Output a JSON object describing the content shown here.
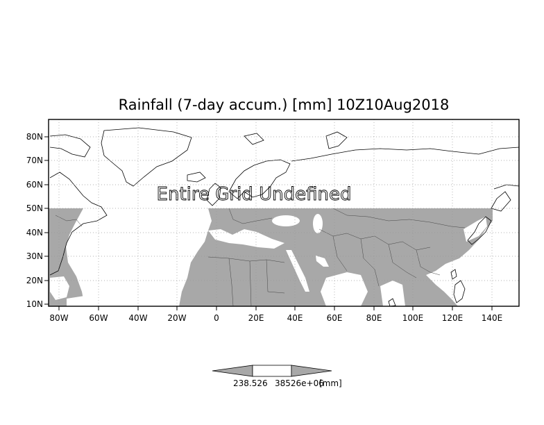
{
  "title": "Rainfall (7-day accum.) [mm] 10Z10Aug2018",
  "overlay_message": "Entire Grid Undefined",
  "lat_ticks": [
    "80N",
    "70N",
    "60N",
    "50N",
    "40N",
    "30N",
    "20N",
    "10N"
  ],
  "lon_ticks": [
    "80W",
    "60W",
    "40W",
    "20W",
    "0",
    "20E",
    "40E",
    "60E",
    "80E",
    "100E",
    "120E",
    "140E"
  ],
  "colorbar": {
    "labels": [
      "238.526",
      "38526e+06",
      "[mm]"
    ]
  },
  "colors": {
    "land_fill": "#a8a8a8",
    "grid": "#999999",
    "frame": "#000000"
  }
}
